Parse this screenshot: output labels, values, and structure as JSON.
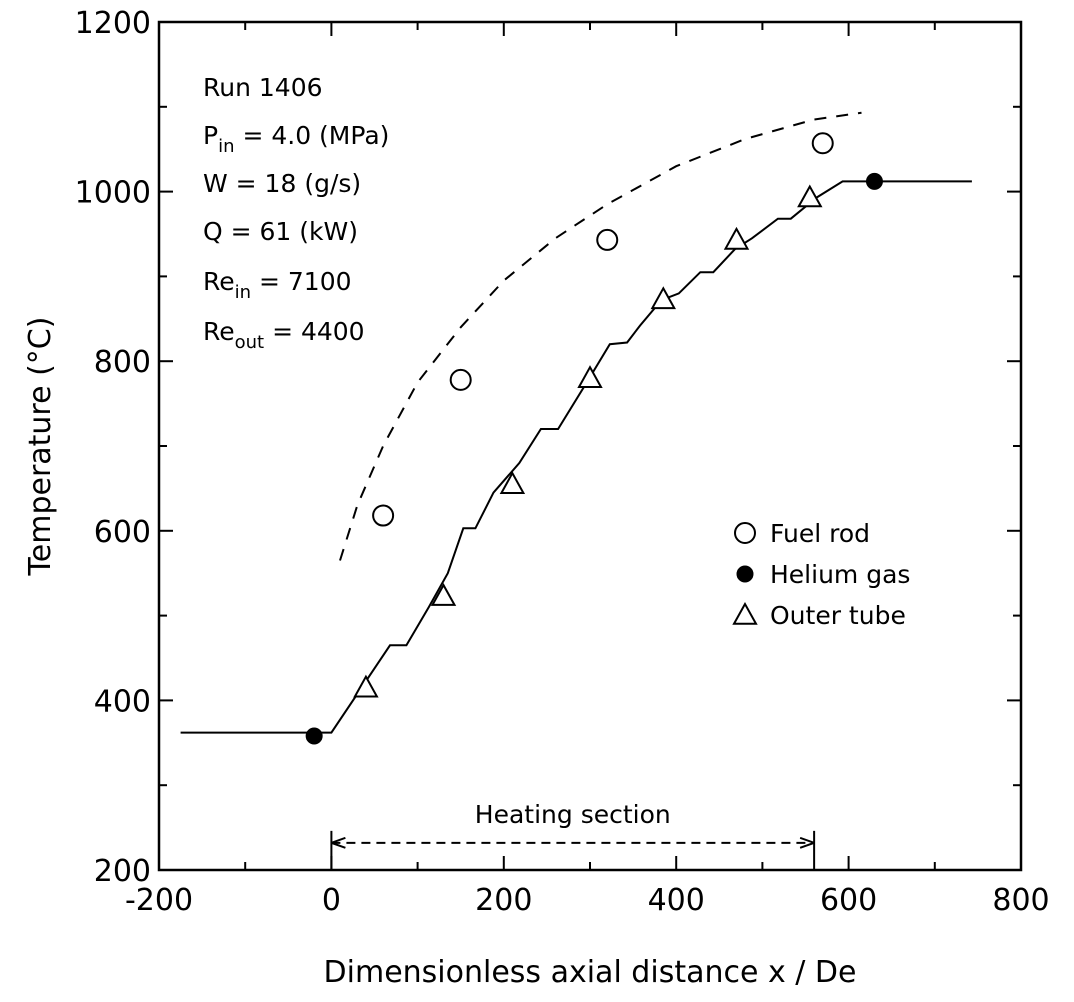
{
  "chart_data": {
    "type": "scatter",
    "xlabel": "Dimensionless axial distance x / De",
    "ylabel": "Temperature (°C)",
    "xlim": [
      -200,
      800
    ],
    "ylim": [
      200,
      1200
    ],
    "x_ticks": [
      "-200",
      "0",
      "200",
      "400",
      "600",
      "800"
    ],
    "y_ticks": [
      "200",
      "400",
      "600",
      "800",
      "1000",
      "1200"
    ],
    "run_info": {
      "run": "Run 1406",
      "pin_base": "P",
      "pin_sub": "in",
      "pin_value": " = 4.0 (MPa)",
      "w": "W = 18 (g/s)",
      "q": "Q = 61 (kW)",
      "rein_base": "Re",
      "rein_sub": "in",
      "rein_value": " = 7100",
      "reout_base": "Re",
      "reout_sub": "out",
      "reout_value": " = 4400"
    },
    "series": [
      {
        "name": "Fuel rod",
        "marker": "open-circle",
        "points": [
          [
            60,
            618
          ],
          [
            150,
            778
          ],
          [
            320,
            943
          ],
          [
            570,
            1057
          ]
        ]
      },
      {
        "name": "Helium gas",
        "marker": "filled-circle",
        "points": [
          [
            -20,
            358
          ],
          [
            630,
            1012
          ]
        ]
      },
      {
        "name": "Outer tube",
        "marker": "open-triangle",
        "points": [
          [
            40,
            415
          ],
          [
            130,
            523
          ],
          [
            210,
            655
          ],
          [
            300,
            780
          ],
          [
            385,
            873
          ],
          [
            470,
            943
          ],
          [
            555,
            993
          ]
        ]
      }
    ],
    "lines": [
      {
        "style": "solid",
        "points": [
          [
            -175,
            362
          ],
          [
            0,
            362
          ],
          [
            0,
            362
          ],
          [
            68,
            465
          ],
          [
            87,
            465
          ],
          [
            113,
            510
          ],
          [
            135,
            550
          ],
          [
            153,
            603
          ],
          [
            167,
            603
          ],
          [
            188,
            645
          ],
          [
            218,
            680
          ],
          [
            243,
            720
          ],
          [
            263,
            720
          ],
          [
            298,
            778
          ],
          [
            323,
            820
          ],
          [
            343,
            822
          ],
          [
            358,
            842
          ],
          [
            383,
            872
          ],
          [
            403,
            880
          ],
          [
            428,
            905
          ],
          [
            443,
            905
          ],
          [
            468,
            932
          ],
          [
            488,
            945
          ],
          [
            518,
            968
          ],
          [
            533,
            968
          ],
          [
            563,
            993
          ],
          [
            593,
            1012
          ],
          [
            743,
            1012
          ]
        ]
      },
      {
        "style": "dashed",
        "points": [
          [
            10,
            565
          ],
          [
            30,
            630
          ],
          [
            60,
            700
          ],
          [
            100,
            775
          ],
          [
            150,
            840
          ],
          [
            200,
            895
          ],
          [
            260,
            945
          ],
          [
            320,
            985
          ],
          [
            400,
            1030
          ],
          [
            480,
            1062
          ],
          [
            560,
            1085
          ],
          [
            615,
            1093
          ]
        ]
      }
    ],
    "annotation": {
      "text": "Heating section",
      "x_start": 0,
      "x_end": 560,
      "y": 232
    },
    "grid": false,
    "legend_position": "right-middle"
  }
}
